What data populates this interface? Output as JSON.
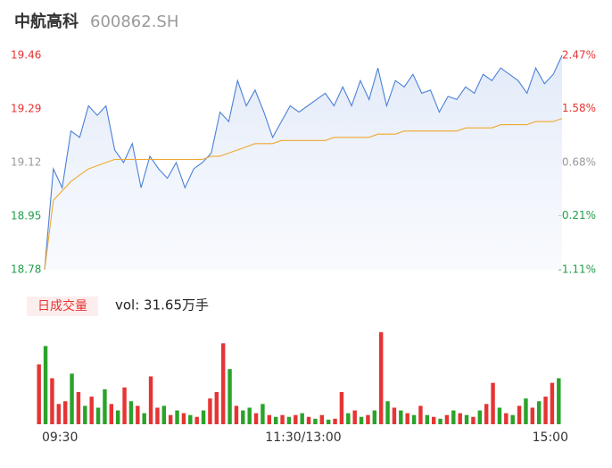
{
  "chart_data": {
    "type": "line",
    "title": "中航高科",
    "subtitle": "600862.SH",
    "volume_label": "日成交量",
    "volume_text": "vol: 31.65万手",
    "xlim": [
      0,
      240
    ],
    "xticks": [
      {
        "value": 0,
        "label": "09:30"
      },
      {
        "value": 120,
        "label": "11:30/13:00"
      },
      {
        "value": 240,
        "label": "15:00"
      }
    ],
    "ylim": [
      18.78,
      19.46
    ],
    "yticks": [
      19.46,
      19.29,
      19.12,
      18.95,
      18.78
    ],
    "ytick_colors": [
      "#e63434",
      "#e63434",
      "#999999",
      "#1f9e4a",
      "#1f9e4a"
    ],
    "y2lim": [
      -1.11,
      2.47
    ],
    "y2ticks": [
      {
        "value": 2.47,
        "label": "2.47%"
      },
      {
        "value": 1.58,
        "label": "1.58%"
      },
      {
        "value": 0.68,
        "label": "0.68%"
      },
      {
        "value": -0.21,
        "label": "-0.21%"
      },
      {
        "value": -1.11,
        "label": "-1.11%"
      }
    ],
    "series": [
      {
        "color": "#4a80d8",
        "values": [
          18.78,
          19.1,
          19.04,
          19.22,
          19.2,
          19.3,
          19.27,
          19.3,
          19.16,
          19.12,
          19.18,
          19.04,
          19.14,
          19.1,
          19.07,
          19.12,
          19.04,
          19.1,
          19.12,
          19.15,
          19.28,
          19.25,
          19.38,
          19.3,
          19.35,
          19.28,
          19.2,
          19.25,
          19.3,
          19.28,
          19.3,
          19.32,
          19.34,
          19.3,
          19.36,
          19.3,
          19.38,
          19.32,
          19.42,
          19.3,
          19.38,
          19.36,
          19.4,
          19.34,
          19.35,
          19.28,
          19.33,
          19.32,
          19.36,
          19.34,
          19.4,
          19.38,
          19.42,
          19.4,
          19.38,
          19.34,
          19.42,
          19.37,
          19.4,
          19.46
        ]
      },
      {
        "color": "#f0a830",
        "values": [
          18.78,
          19.0,
          19.03,
          19.06,
          19.08,
          19.1,
          19.11,
          19.12,
          19.13,
          19.13,
          19.13,
          19.13,
          19.13,
          19.13,
          19.13,
          19.13,
          19.13,
          19.13,
          19.13,
          19.14,
          19.14,
          19.15,
          19.16,
          19.17,
          19.18,
          19.18,
          19.18,
          19.19,
          19.19,
          19.19,
          19.19,
          19.19,
          19.19,
          19.2,
          19.2,
          19.2,
          19.2,
          19.2,
          19.21,
          19.21,
          19.21,
          19.22,
          19.22,
          19.22,
          19.22,
          19.22,
          19.22,
          19.22,
          19.23,
          19.23,
          19.23,
          19.23,
          19.24,
          19.24,
          19.24,
          19.24,
          19.25,
          19.25,
          19.25,
          19.26
        ]
      }
    ],
    "volume_ylim": [
      0,
      1
    ],
    "volume": [
      0.65,
      0.85,
      0.5,
      0.22,
      0.25,
      0.55,
      0.35,
      0.2,
      0.3,
      0.18,
      0.38,
      0.22,
      0.15,
      0.4,
      0.25,
      0.2,
      0.12,
      0.52,
      0.18,
      0.2,
      0.1,
      0.15,
      0.12,
      0.1,
      0.08,
      0.15,
      0.28,
      0.35,
      0.88,
      0.6,
      0.2,
      0.15,
      0.18,
      0.12,
      0.22,
      0.1,
      0.08,
      0.1,
      0.08,
      0.1,
      0.12,
      0.08,
      0.06,
      0.1,
      0.05,
      0.06,
      0.35,
      0.12,
      0.15,
      0.08,
      0.1,
      0.15,
      1.0,
      0.25,
      0.18,
      0.15,
      0.12,
      0.1,
      0.2,
      0.1,
      0.08,
      0.06,
      0.1,
      0.15,
      0.12,
      0.1,
      0.08,
      0.15,
      0.22,
      0.45,
      0.18,
      0.12,
      0.1,
      0.2,
      0.28,
      0.18,
      0.25,
      0.3,
      0.45,
      0.5
    ],
    "volume_colors": [
      "#e63434",
      "#2aa32a",
      "#e63434",
      "#e63434",
      "#e63434",
      "#2aa32a",
      "#e63434",
      "#2aa32a",
      "#e63434",
      "#2aa32a",
      "#2aa32a",
      "#e63434",
      "#2aa32a",
      "#e63434",
      "#2aa32a",
      "#e63434",
      "#2aa32a",
      "#e63434",
      "#e63434",
      "#2aa32a",
      "#e63434",
      "#2aa32a",
      "#e63434",
      "#2aa32a",
      "#e63434",
      "#2aa32a",
      "#e63434",
      "#e63434",
      "#e63434",
      "#2aa32a",
      "#e63434",
      "#2aa32a",
      "#2aa32a",
      "#e63434",
      "#2aa32a",
      "#e63434",
      "#2aa32a",
      "#e63434",
      "#2aa32a",
      "#e63434",
      "#2aa32a",
      "#e63434",
      "#2aa32a",
      "#e63434",
      "#2aa32a",
      "#e63434",
      "#e63434",
      "#2aa32a",
      "#e63434",
      "#2aa32a",
      "#e63434",
      "#2aa32a",
      "#e63434",
      "#2aa32a",
      "#e63434",
      "#2aa32a",
      "#e63434",
      "#2aa32a",
      "#e63434",
      "#2aa32a",
      "#e63434",
      "#2aa32a",
      "#e63434",
      "#2aa32a",
      "#e63434",
      "#2aa32a",
      "#e63434",
      "#2aa32a",
      "#e63434",
      "#e63434",
      "#2aa32a",
      "#e63434",
      "#2aa32a",
      "#e63434",
      "#2aa32a",
      "#e63434",
      "#2aa32a",
      "#e63434",
      "#e63434",
      "#2aa32a"
    ]
  }
}
